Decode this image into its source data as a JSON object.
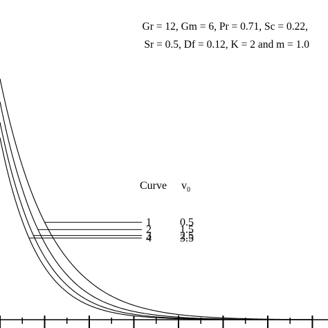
{
  "chart_data": {
    "type": "line",
    "parameters_text": [
      "Gr = 12, Gm = 6, Pr = 0.71, Sc = 0.22,",
      "Sr = 0.5, Df = 0.12, K = 2 and m = 1.0"
    ],
    "legend": {
      "header_curve": "Curve",
      "header_param": "v",
      "header_param_subscript": "0",
      "rows": [
        {
          "curve": "1",
          "v0": "0.5"
        },
        {
          "curve": "2",
          "v0": "1.5"
        },
        {
          "curve": "3",
          "v0": "2.5"
        },
        {
          "curve": "4",
          "v0": "3.5"
        }
      ]
    },
    "x": [
      0,
      0.5,
      1,
      1.5,
      2,
      2.5,
      3,
      3.5,
      4,
      4.5,
      5,
      5.5,
      6,
      6.5,
      7
    ],
    "series": [
      {
        "name": "1",
        "values": [
          0.94,
          0.6,
          0.38,
          0.24,
          0.15,
          0.092,
          0.056,
          0.034,
          0.02,
          0.012,
          0.007,
          0.004,
          0.002,
          0.001,
          0.001
        ]
      },
      {
        "name": "2",
        "values": [
          0.85,
          0.51,
          0.3,
          0.175,
          0.1,
          0.057,
          0.032,
          0.018,
          0.01,
          0.005,
          0.003,
          0.0015,
          0.001,
          0.0005,
          0.0003
        ]
      },
      {
        "name": "3",
        "values": [
          0.77,
          0.44,
          0.245,
          0.135,
          0.073,
          0.039,
          0.021,
          0.011,
          0.006,
          0.003,
          0.0015,
          0.0008,
          0.0004,
          0.0002,
          0.0001
        ]
      },
      {
        "name": "4",
        "values": [
          0.71,
          0.385,
          0.205,
          0.108,
          0.056,
          0.029,
          0.015,
          0.008,
          0.004,
          0.002,
          0.001,
          0.0005,
          0.0003,
          0.0001,
          0.0001
        ]
      }
    ],
    "label_pointer_x": [
      1.0,
      0.85,
      0.75,
      0.65
    ],
    "xlim": [
      0,
      7.35
    ],
    "ylim": [
      0,
      1.15
    ],
    "x_ticks": [
      0,
      1,
      2,
      3,
      4,
      5,
      6,
      7
    ],
    "grid": false
  }
}
